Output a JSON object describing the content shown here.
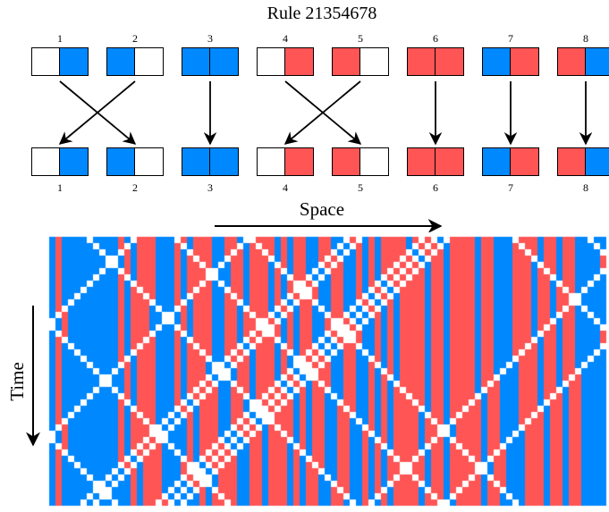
{
  "title": "Rule 21354678",
  "colors": {
    "blank": "#ffffff",
    "red": "#ff5555",
    "blue": "#0088ff",
    "outline": "#000000"
  },
  "rule": {
    "inputs": [
      {
        "label": "1",
        "left": "blank",
        "right": "blue"
      },
      {
        "label": "2",
        "left": "blue",
        "right": "blank"
      },
      {
        "label": "3",
        "left": "blue",
        "right": "blue"
      },
      {
        "label": "4",
        "left": "blank",
        "right": "red"
      },
      {
        "label": "5",
        "left": "red",
        "right": "blank"
      },
      {
        "label": "6",
        "left": "red",
        "right": "red"
      },
      {
        "label": "7",
        "left": "blue",
        "right": "red"
      },
      {
        "label": "8",
        "left": "red",
        "right": "blue"
      }
    ],
    "mapping": [
      2,
      1,
      3,
      5,
      4,
      6,
      7,
      8
    ]
  },
  "axes": {
    "space_label": "Space",
    "time_label": "Time"
  }
}
